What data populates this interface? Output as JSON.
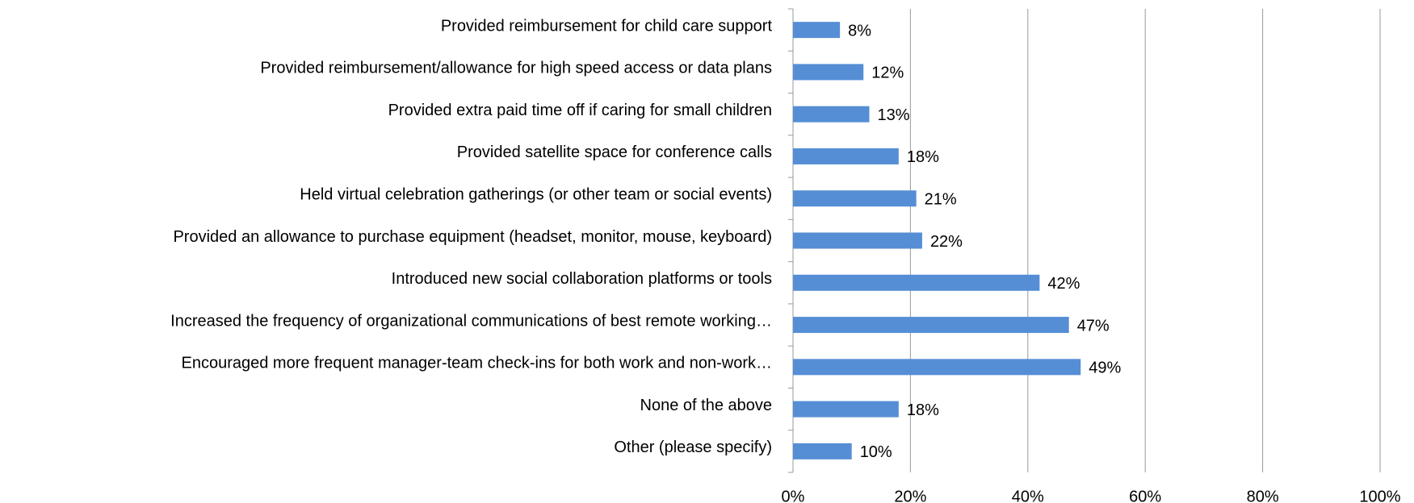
{
  "chart_data": {
    "type": "barh",
    "categories": [
      "Provided reimbursement for child care support",
      "Provided reimbursement/allowance for high speed access or data plans",
      "Provided extra paid time off if caring for small children",
      "Provided satellite space for conference calls",
      "Held virtual celebration gatherings (or other team or social events)",
      "Provided an allowance to purchase equipment (headset, monitor, mouse, keyboard)",
      "Introduced new social collaboration platforms or tools",
      "Increased the frequency of organizational communications of best remote working…",
      "Encouraged more frequent manager-team check-ins for both work and non-work…",
      "None of the above",
      "Other (please specify)"
    ],
    "values": [
      8,
      12,
      13,
      18,
      21,
      22,
      42,
      47,
      49,
      18,
      10
    ],
    "value_labels": [
      "8%",
      "12%",
      "13%",
      "18%",
      "21%",
      "22%",
      "42%",
      "47%",
      "49%",
      "18%",
      "10%"
    ],
    "color": "#558ed5",
    "xlim": [
      0,
      100
    ],
    "xticks": [
      {
        "value": 0,
        "label": "0%"
      },
      {
        "value": 20,
        "label": "20%"
      },
      {
        "value": 40,
        "label": "40%"
      },
      {
        "value": 60,
        "label": "60%"
      },
      {
        "value": 80,
        "label": "80%"
      },
      {
        "value": 100,
        "label": "100%"
      }
    ],
    "grid": true
  }
}
